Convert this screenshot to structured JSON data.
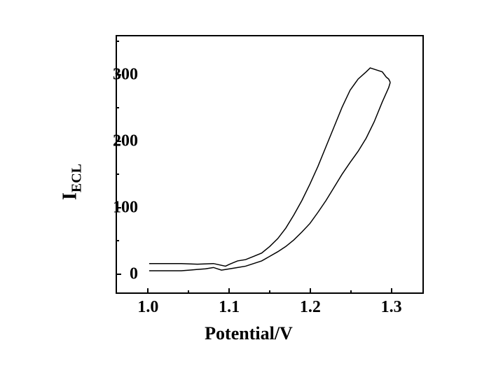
{
  "chart": {
    "type": "line",
    "xlabel": "Potential/V",
    "ylabel_main": "I",
    "ylabel_sub": "ECL",
    "xlim": [
      0.96,
      1.34
    ],
    "ylim": [
      -30,
      360
    ],
    "xtick_major": [
      1.0,
      1.1,
      1.2,
      1.3
    ],
    "xtick_labels": [
      "1.0",
      "1.1",
      "1.2",
      "1.3"
    ],
    "xtick_minor": [
      1.05,
      1.15,
      1.25
    ],
    "ytick_major": [
      0,
      100,
      200,
      300
    ],
    "ytick_labels": [
      "0",
      "100",
      "200",
      "300"
    ],
    "ytick_minor": [
      50,
      150,
      250,
      350
    ],
    "background_color": "#ffffff",
    "axis_color": "#000000",
    "line_color": "#000000",
    "line_width": 1.5,
    "label_fontsize": 26,
    "tick_fontsize": 24,
    "forward_curve": [
      [
        1.0,
        14
      ],
      [
        1.02,
        14
      ],
      [
        1.04,
        14
      ],
      [
        1.06,
        13
      ],
      [
        1.08,
        14
      ],
      [
        1.095,
        10
      ],
      [
        1.1,
        13
      ],
      [
        1.11,
        18
      ],
      [
        1.12,
        20
      ],
      [
        1.13,
        25
      ],
      [
        1.14,
        30
      ],
      [
        1.15,
        40
      ],
      [
        1.16,
        52
      ],
      [
        1.17,
        68
      ],
      [
        1.18,
        88
      ],
      [
        1.19,
        110
      ],
      [
        1.2,
        135
      ],
      [
        1.21,
        162
      ],
      [
        1.22,
        192
      ],
      [
        1.23,
        222
      ],
      [
        1.24,
        252
      ],
      [
        1.25,
        278
      ],
      [
        1.26,
        295
      ],
      [
        1.27,
        306
      ],
      [
        1.275,
        312
      ],
      [
        1.28,
        310
      ],
      [
        1.285,
        308
      ],
      [
        1.29,
        306
      ],
      [
        1.295,
        298
      ],
      [
        1.298,
        295
      ],
      [
        1.3,
        290
      ]
    ],
    "reverse_curve": [
      [
        1.3,
        290
      ],
      [
        1.298,
        282
      ],
      [
        1.29,
        260
      ],
      [
        1.28,
        230
      ],
      [
        1.27,
        205
      ],
      [
        1.26,
        185
      ],
      [
        1.25,
        168
      ],
      [
        1.24,
        150
      ],
      [
        1.23,
        130
      ],
      [
        1.22,
        110
      ],
      [
        1.21,
        92
      ],
      [
        1.2,
        75
      ],
      [
        1.19,
        62
      ],
      [
        1.18,
        50
      ],
      [
        1.17,
        40
      ],
      [
        1.16,
        32
      ],
      [
        1.15,
        25
      ],
      [
        1.14,
        18
      ],
      [
        1.13,
        14
      ],
      [
        1.12,
        10
      ],
      [
        1.11,
        8
      ],
      [
        1.1,
        6
      ],
      [
        1.09,
        4
      ],
      [
        1.08,
        8
      ],
      [
        1.07,
        6
      ],
      [
        1.06,
        5
      ],
      [
        1.05,
        4
      ],
      [
        1.04,
        3
      ],
      [
        1.02,
        3
      ],
      [
        1.0,
        3
      ]
    ]
  }
}
